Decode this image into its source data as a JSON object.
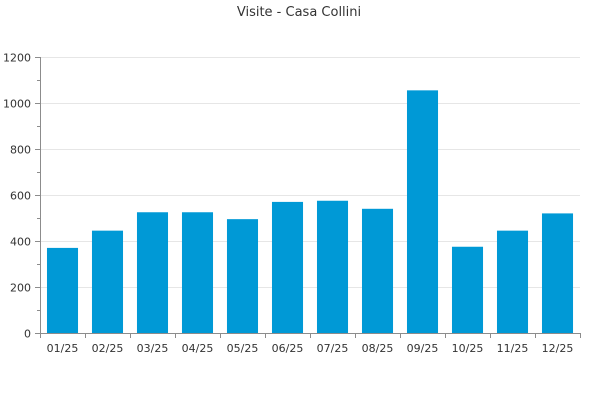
{
  "chart_data": {
    "type": "bar",
    "title": "Visite - Casa Collini",
    "xlabel": "",
    "ylabel": "",
    "categories": [
      "01/25",
      "02/25",
      "03/25",
      "04/25",
      "05/25",
      "06/25",
      "07/25",
      "08/25",
      "09/25",
      "10/25",
      "11/25",
      "12/25"
    ],
    "values": [
      370,
      445,
      525,
      525,
      495,
      570,
      575,
      540,
      1055,
      375,
      445,
      520
    ],
    "ylim": [
      0,
      1200
    ],
    "yticks": [
      0,
      200,
      400,
      600,
      800,
      1000,
      1200
    ],
    "grid": true,
    "bar_color": "#0099d6",
    "grid_color": "#e6e6e6",
    "axis_color": "#8c8c8c"
  }
}
